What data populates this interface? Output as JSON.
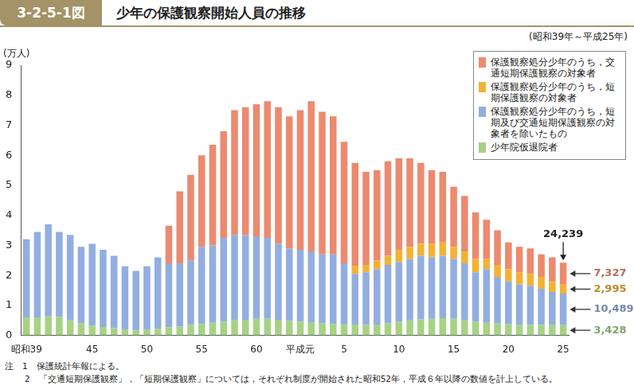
{
  "chart_data": {
    "type": "bar",
    "figure": "3-2-5-1図",
    "title": "少年の保護観察開始人員の推移",
    "subtitle": "(昭和39年～平成25年)",
    "y_label": "(万人)",
    "notes": [
      "注　1　保護統計年報による。",
      "2　「交通短期保護観察」，「短期保護観察」については，それぞれ制度が開始された昭和52年，平成６年以降の数値を計上している。"
    ],
    "categories": [
      "昭和39",
      null,
      null,
      null,
      null,
      null,
      "45",
      null,
      null,
      null,
      null,
      "50",
      null,
      null,
      null,
      null,
      "55",
      null,
      null,
      null,
      null,
      "60",
      null,
      null,
      null,
      "平成元",
      null,
      null,
      null,
      "5",
      null,
      null,
      null,
      null,
      "10",
      null,
      null,
      null,
      null,
      "15",
      null,
      null,
      null,
      null,
      "20",
      null,
      null,
      null,
      null,
      "25"
    ],
    "series": [
      {
        "name": "少年院仮退院者",
        "color": "#a6d283",
        "values": [
          0.6,
          0.6,
          0.63,
          0.62,
          0.5,
          0.4,
          0.32,
          0.28,
          0.25,
          0.2,
          0.17,
          0.18,
          0.22,
          0.27,
          0.3,
          0.35,
          0.38,
          0.42,
          0.45,
          0.5,
          0.52,
          0.55,
          0.55,
          0.52,
          0.48,
          0.45,
          0.42,
          0.4,
          0.38,
          0.37,
          0.36,
          0.35,
          0.36,
          0.4,
          0.45,
          0.5,
          0.53,
          0.55,
          0.57,
          0.55,
          0.5,
          0.45,
          0.42,
          0.4,
          0.38,
          0.36,
          0.35,
          0.35,
          0.34,
          0.3428
        ]
      },
      {
        "name": "保護観察処分少年のうち，短期及び交通短期保護観察の対象者を除いたもの",
        "color": "#92aee0",
        "values": [
          2.6,
          2.85,
          3.07,
          2.83,
          2.85,
          2.55,
          2.73,
          2.57,
          2.4,
          2.1,
          1.98,
          2.12,
          2.38,
          2.13,
          2.1,
          2.15,
          2.57,
          2.58,
          2.8,
          2.85,
          2.83,
          2.75,
          2.7,
          2.53,
          2.42,
          2.4,
          2.38,
          2.3,
          2.32,
          2.03,
          1.69,
          1.75,
          1.84,
          1.95,
          2.0,
          2.05,
          2.12,
          2.05,
          2.08,
          2.0,
          1.9,
          1.65,
          1.78,
          1.55,
          1.42,
          1.34,
          1.3,
          1.2,
          1.11,
          1.0489
        ]
      },
      {
        "name": "保護観察処分少年のうち，短期保護観察の対象者",
        "color": "#f2b233",
        "values": [
          null,
          null,
          null,
          null,
          null,
          null,
          null,
          null,
          null,
          null,
          null,
          null,
          null,
          null,
          null,
          null,
          null,
          null,
          null,
          null,
          null,
          null,
          null,
          null,
          null,
          null,
          null,
          null,
          null,
          null,
          0.25,
          0.25,
          0.3,
          0.3,
          0.4,
          0.4,
          0.4,
          0.45,
          0.45,
          0.4,
          0.4,
          0.45,
          0.35,
          0.4,
          0.4,
          0.4,
          0.4,
          0.4,
          0.35,
          0.2995
        ]
      },
      {
        "name": "保護観察処分少年のうち，交通短期保護観察の対象者",
        "color": "#ec8a6f",
        "values": [
          null,
          null,
          null,
          null,
          null,
          null,
          null,
          null,
          null,
          null,
          null,
          null,
          null,
          1.25,
          2.4,
          2.85,
          3.05,
          3.35,
          3.55,
          4.15,
          4.25,
          4.4,
          4.55,
          4.55,
          4.4,
          4.65,
          5.0,
          4.75,
          4.6,
          4.05,
          3.45,
          3.1,
          3.0,
          3.15,
          3.05,
          2.95,
          2.7,
          2.45,
          2.35,
          2.0,
          1.85,
          1.55,
          1.3,
          1.15,
          0.9,
          0.85,
          0.85,
          0.75,
          0.8,
          0.7327
        ]
      }
    ],
    "annotations": [
      {
        "label": "24,239",
        "value": 2.4239
      },
      {
        "label": "7,327",
        "value": 0.7327,
        "series": "保護観察処分少年のうち，交通短期保護観察の対象者"
      },
      {
        "label": "2,995",
        "value": 0.2995,
        "series": "保護観察処分少年のうち，短期保護観察の対象者"
      },
      {
        "label": "10,489",
        "value": 1.0489,
        "series": "保護観察処分少年のうち，短期及び交通短期保護観察の対象者を除いたもの"
      },
      {
        "label": "3,428",
        "value": 0.3428,
        "series": "少年院仮退院者"
      }
    ],
    "ylim": [
      0,
      9
    ],
    "yticks": [
      0,
      1,
      2,
      3,
      4,
      5,
      6,
      7,
      8,
      9
    ],
    "stacked": true,
    "grid": false,
    "legend": "top-right"
  }
}
